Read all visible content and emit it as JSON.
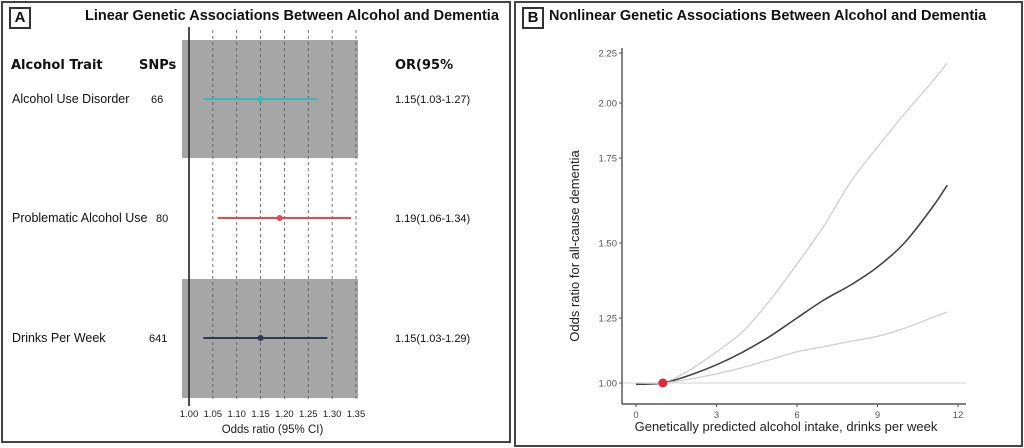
{
  "panelA": {
    "letter": "A",
    "title": "Linear Genetic Associations Between Alcohol and Dementia",
    "headers": {
      "trait": "Alcohol Trait",
      "snps": "SNPs",
      "or": "OR(95%"
    },
    "xlabel": "Odds ratio (95% CI)",
    "colors": {
      "shade": "#a6a6a6",
      "ref_line": "#222222"
    }
  },
  "panelB": {
    "letter": "B",
    "title": "Nonlinear Genetic Associations Between Alcohol and Dementia",
    "colors": {
      "estimate": "#444444",
      "ci": "#cfcfcf",
      "reference": "#d9d9d9",
      "point": "#e0283c"
    }
  },
  "chart_data": [
    {
      "type": "forest",
      "title": "Linear Genetic Associations Between Alcohol and Dementia",
      "xlabel": "Odds ratio (95% CI)",
      "xlim": [
        1.0,
        1.35
      ],
      "xticks": [
        "1.00",
        "1.05",
        "1.10",
        "1.15",
        "1.20",
        "1.25",
        "1.30",
        "1.35"
      ],
      "reference_line": 1.0,
      "grid": "dashed vertical",
      "rows": [
        {
          "trait": "Alcohol Use Disorder",
          "snps": "66",
          "or": 1.15,
          "lo": 1.03,
          "hi": 1.27,
          "label": "1.15(1.03-1.27)",
          "color": "#3bb8b8",
          "shaded": true
        },
        {
          "trait": "Problematic Alcohol Use",
          "snps": "80",
          "or": 1.19,
          "lo": 1.06,
          "hi": 1.34,
          "label": "1.19(1.06-1.34)",
          "color": "#e8474f",
          "shaded": false
        },
        {
          "trait": "Drinks Per Week",
          "snps": "641",
          "or": 1.15,
          "lo": 1.03,
          "hi": 1.29,
          "label": "1.15(1.03-1.29)",
          "color": "#2e3a55",
          "shaded": true
        }
      ]
    },
    {
      "type": "line",
      "title": "Nonlinear Genetic Associations Between Alcohol and Dementia",
      "xlabel": "Genetically predicted alcohol intake, drinks per week",
      "ylabel": "Odds ratio for all-cause dementia",
      "xlim": [
        -0.5,
        12.2
      ],
      "ylim": [
        0.93,
        2.3
      ],
      "xticks": [
        "0",
        "3",
        "6",
        "9",
        "12"
      ],
      "yticks": [
        "1.00",
        "1.25",
        "1.50",
        "1.75",
        "2.00",
        "2.25"
      ],
      "reference_y": 1.0,
      "reference_point": {
        "x": 1.0,
        "y": 1.0
      },
      "x": [
        0.0,
        1.0,
        2,
        3,
        4,
        5,
        6,
        7,
        8,
        9,
        10,
        11,
        11.6
      ],
      "series": [
        {
          "name": "upper 95% CI",
          "values": [
            1.0,
            1.0,
            1.05,
            1.12,
            1.2,
            1.31,
            1.43,
            1.55,
            1.68,
            1.8,
            1.95,
            2.1,
            2.2
          ]
        },
        {
          "name": "estimate",
          "values": [
            0.995,
            1.0,
            1.03,
            1.07,
            1.12,
            1.18,
            1.25,
            1.31,
            1.36,
            1.42,
            1.5,
            1.6,
            1.67
          ]
        },
        {
          "name": "lower 95% CI",
          "values": [
            1.0,
            1.0,
            1.015,
            1.035,
            1.06,
            1.09,
            1.12,
            1.14,
            1.16,
            1.18,
            1.21,
            1.25,
            1.27
          ]
        }
      ]
    }
  ]
}
